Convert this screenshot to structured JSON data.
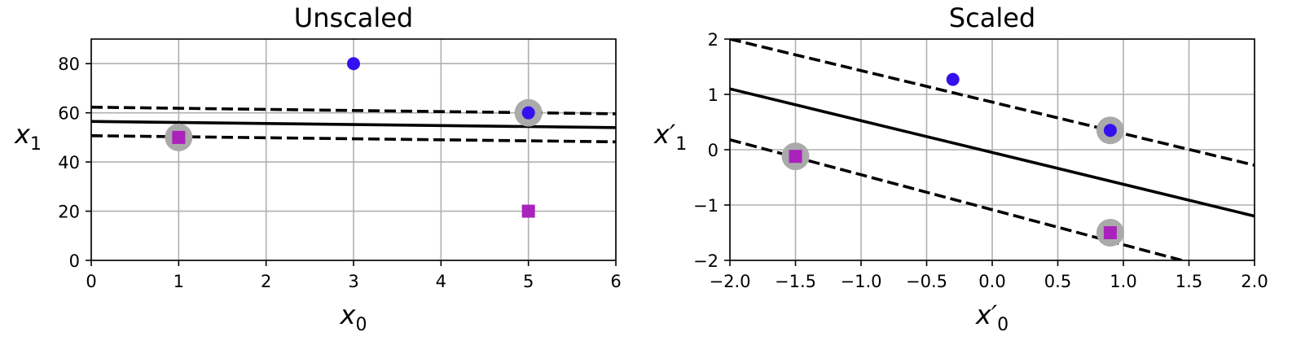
{
  "chart_data": [
    {
      "type": "scatter",
      "title": "Unscaled",
      "xlabel": {
        "base": "x",
        "prime": "",
        "sub": "0"
      },
      "ylabel": {
        "base": "x",
        "prime": "",
        "sub": "1"
      },
      "xlim": [
        0,
        6
      ],
      "ylim": [
        0,
        90
      ],
      "xticks": [
        0,
        1,
        2,
        3,
        4,
        5,
        6
      ],
      "xtick_labels": [
        "0",
        "1",
        "2",
        "3",
        "4",
        "5",
        "6"
      ],
      "yticks": [
        0,
        20,
        40,
        60,
        80
      ],
      "ytick_labels": [
        "0",
        "20",
        "40",
        "60",
        "80"
      ],
      "grid": true,
      "series": [
        {
          "marker": "circle",
          "color": "#3311ee",
          "points": [
            [
              3,
              80
            ],
            [
              5,
              60
            ]
          ]
        },
        {
          "marker": "square",
          "color": "#aa22bb",
          "points": [
            [
              1,
              50
            ],
            [
              5,
              20
            ]
          ]
        }
      ],
      "support_vectors": [
        [
          1,
          50
        ],
        [
          5,
          60
        ]
      ],
      "support_vector_color": "#aaaaaa",
      "lines": [
        {
          "style": "solid",
          "points": [
            [
              0,
              56.5
            ],
            [
              6,
              54.0
            ]
          ]
        },
        {
          "style": "dashed",
          "points": [
            [
              0,
              62.3
            ],
            [
              6,
              59.6
            ]
          ]
        },
        {
          "style": "dashed",
          "points": [
            [
              0,
              50.7
            ],
            [
              6,
              48.2
            ]
          ]
        }
      ]
    },
    {
      "type": "scatter",
      "title": "Scaled",
      "xlabel": {
        "base": "x",
        "prime": "′",
        "sub": "0"
      },
      "ylabel": {
        "base": "x",
        "prime": "′",
        "sub": "1"
      },
      "xlim": [
        -2,
        2
      ],
      "ylim": [
        -2,
        2
      ],
      "xticks": [
        -2,
        -1.5,
        -1,
        -0.5,
        0,
        0.5,
        1,
        1.5,
        2
      ],
      "xtick_labels": [
        "−2.0",
        "−1.5",
        "−1.0",
        "−0.5",
        "0.0",
        "0.5",
        "1.0",
        "1.5",
        "2.0"
      ],
      "yticks": [
        -2,
        -1,
        0,
        1,
        2
      ],
      "ytick_labels": [
        "−2",
        "−1",
        "0",
        "1",
        "2"
      ],
      "grid": true,
      "series": [
        {
          "marker": "circle",
          "color": "#3311ee",
          "points": [
            [
              -0.3,
              1.27
            ],
            [
              0.9,
              0.35
            ]
          ]
        },
        {
          "marker": "square",
          "color": "#aa22bb",
          "points": [
            [
              -1.5,
              -0.12
            ],
            [
              0.9,
              -1.5
            ]
          ]
        }
      ],
      "support_vectors": [
        [
          -1.5,
          -0.12
        ],
        [
          0.9,
          0.35
        ],
        [
          0.9,
          -1.5
        ]
      ],
      "support_vector_color": "#aaaaaa",
      "lines": [
        {
          "style": "solid",
          "points": [
            [
              -2,
              1.1
            ],
            [
              2,
              -1.2
            ]
          ]
        },
        {
          "style": "dashed",
          "points": [
            [
              -2,
              2.0
            ],
            [
              2,
              -0.28
            ]
          ]
        },
        {
          "style": "dashed",
          "points": [
            [
              -2,
              0.18
            ],
            [
              2,
              -2.35
            ]
          ]
        }
      ]
    }
  ]
}
